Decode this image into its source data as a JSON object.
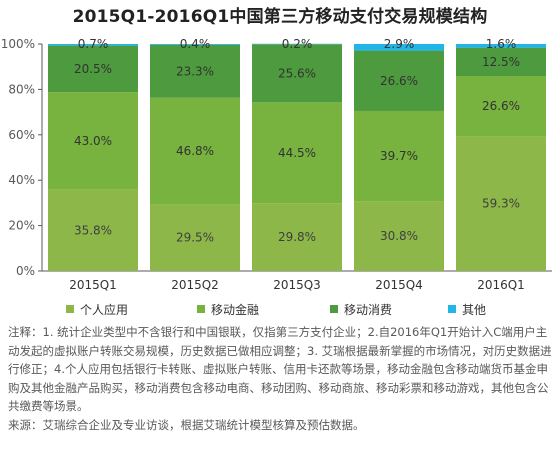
{
  "chart_data": {
    "type": "bar",
    "stacked": true,
    "percent_stacked": true,
    "title": "2015Q1-2016Q1中国第三方移动支付交易规模结构",
    "categories": [
      "2015Q1",
      "2015Q2",
      "2015Q3",
      "2015Q4",
      "2016Q1"
    ],
    "series": [
      {
        "name": "个人应用",
        "color": "#8DB849",
        "values": [
          35.8,
          29.5,
          29.8,
          30.8,
          59.3
        ],
        "labels": [
          "35.8%",
          "29.5%",
          "29.8%",
          "30.8%",
          "59.3%"
        ]
      },
      {
        "name": "移动金融",
        "color": "#77B33E",
        "values": [
          43.0,
          46.8,
          44.5,
          39.7,
          26.6
        ],
        "labels": [
          "43.0%",
          "46.8%",
          "44.5%",
          "39.7%",
          "26.6%"
        ]
      },
      {
        "name": "移动消费",
        "color": "#4E9A3E",
        "values": [
          20.5,
          23.3,
          25.6,
          26.6,
          12.5
        ],
        "labels": [
          "20.5%",
          "23.3%",
          "25.6%",
          "26.6%",
          "12.5%"
        ]
      },
      {
        "name": "其他",
        "color": "#21B6E7",
        "values": [
          0.7,
          0.4,
          0.2,
          2.9,
          1.6
        ],
        "labels": [
          "0.7%",
          "0.4%",
          "0.2%",
          "2.9%",
          "1.6%"
        ]
      }
    ],
    "ylim": [
      0,
      100
    ],
    "yticks": [
      "0%",
      "20%",
      "40%",
      "60%",
      "80%",
      "100%"
    ],
    "ytick_values": [
      0,
      20,
      40,
      60,
      80,
      100
    ],
    "xlabel": "",
    "ylabel": "",
    "grid": false,
    "legend_position": "bottom"
  },
  "notes": [
    "注释：1. 统计企业类型中不含银行和中国银联，仅指第三方支付企业；2.自2016年Q1开始计入C端用户主动发起的虚拟账户转账交易规模，历史数据已做相应调整；3. 艾瑞根据最新掌握的市场情况，对历史数据进行修正；4.个人应用包括银行卡转账、虚拟账户转账、信用卡还款等场景，移动金融包含移动端货币基金申购及其他金融产品购买，移动消费包含移动电商、移动团购、移动商旅、移动彩票和移动游戏，其他包含公共缴费等场景。",
    "来源：艾瑞综合企业及专业访谈，根据艾瑞统计模型核算及预估数据。"
  ]
}
